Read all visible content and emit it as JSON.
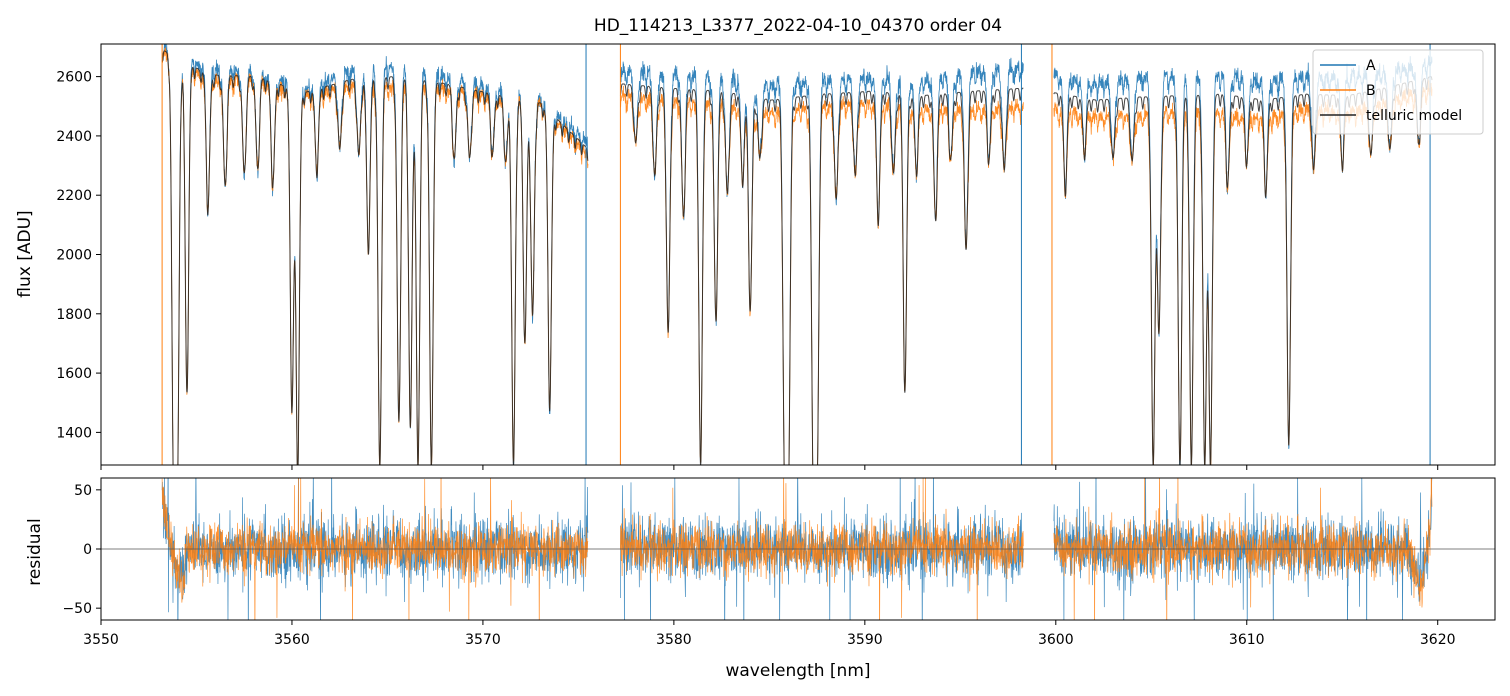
{
  "chart_data": [
    {
      "type": "line",
      "title": "HD_114213_L3377_2022-04-10_04370  order 04",
      "xlabel": "",
      "ylabel": "flux [ADU]",
      "xlim": [
        3550,
        3623
      ],
      "ylim": [
        1290,
        2710
      ],
      "xticks": [
        3550,
        3560,
        3570,
        3580,
        3590,
        3600,
        3610,
        3620
      ],
      "yticks": [
        1400,
        1600,
        1800,
        2000,
        2200,
        2400,
        2600
      ],
      "tick_labels_x_shown": false,
      "grid": false,
      "legend": "top-right",
      "series": [
        {
          "name": "A",
          "color": "#1f77b4"
        },
        {
          "name": "B",
          "color": "#ff7f0e"
        },
        {
          "name": "telluric model",
          "color": "#222222"
        }
      ],
      "segments": [
        {
          "x_range": [
            3553.2,
            3575.5
          ],
          "continuum_A": [
            2700,
            2630,
            2620,
            2560,
            2620,
            2640,
            2600,
            2560,
            2520,
            2380
          ],
          "continuum_B": [
            2690,
            2590,
            2590,
            2540,
            2570,
            2570,
            2560,
            2530,
            2510,
            2340
          ]
        },
        {
          "x_range": [
            3577.2,
            3598.3
          ],
          "continuum_A": [
            2620,
            2610,
            2600,
            2570,
            2590,
            2600,
            2590,
            2620,
            2630
          ],
          "continuum_B": [
            2540,
            2520,
            2510,
            2480,
            2500,
            2510,
            2490,
            2490,
            2500
          ]
        },
        {
          "x_range": [
            3599.9,
            3619.7
          ],
          "continuum_A": [
            2610,
            2580,
            2600,
            2600,
            2610,
            2590,
            2600,
            2600,
            2620,
            2650
          ],
          "continuum_B": [
            2490,
            2470,
            2470,
            2480,
            2480,
            2460,
            2490,
            2480,
            2520,
            2560
          ]
        }
      ],
      "absorption_lines": [
        {
          "x": 3553.8,
          "depth_to": 1290
        },
        {
          "x": 3554.0,
          "depth_to": 1290
        },
        {
          "x": 3554.5,
          "depth_to": 1550
        },
        {
          "x": 3555.6,
          "depth_to": 2170
        },
        {
          "x": 3556.5,
          "depth_to": 2240
        },
        {
          "x": 3557.5,
          "depth_to": 2280
        },
        {
          "x": 3558.2,
          "depth_to": 2300
        },
        {
          "x": 3559.0,
          "depth_to": 2250
        },
        {
          "x": 3560.0,
          "depth_to": 1500
        },
        {
          "x": 3560.3,
          "depth_to": 1290
        },
        {
          "x": 3561.3,
          "depth_to": 2300
        },
        {
          "x": 3562.5,
          "depth_to": 2360
        },
        {
          "x": 3563.5,
          "depth_to": 2340
        },
        {
          "x": 3564.0,
          "depth_to": 2040
        },
        {
          "x": 3564.6,
          "depth_to": 1290
        },
        {
          "x": 3565.6,
          "depth_to": 1440
        },
        {
          "x": 3566.2,
          "depth_to": 1420
        },
        {
          "x": 3566.6,
          "depth_to": 1290
        },
        {
          "x": 3567.3,
          "depth_to": 1290
        },
        {
          "x": 3568.5,
          "depth_to": 2330
        },
        {
          "x": 3569.3,
          "depth_to": 2330
        },
        {
          "x": 3570.5,
          "depth_to": 2350
        },
        {
          "x": 3571.2,
          "depth_to": 2320
        },
        {
          "x": 3571.6,
          "depth_to": 1290
        },
        {
          "x": 3572.2,
          "depth_to": 1710
        },
        {
          "x": 3572.6,
          "depth_to": 1800
        },
        {
          "x": 3573.5,
          "depth_to": 1510
        },
        {
          "x": 3578.0,
          "depth_to": 2380
        },
        {
          "x": 3579.0,
          "depth_to": 2270
        },
        {
          "x": 3579.7,
          "depth_to": 1740
        },
        {
          "x": 3580.5,
          "depth_to": 2140
        },
        {
          "x": 3581.4,
          "depth_to": 1290
        },
        {
          "x": 3582.2,
          "depth_to": 1790
        },
        {
          "x": 3582.8,
          "depth_to": 2210
        },
        {
          "x": 3583.6,
          "depth_to": 2270
        },
        {
          "x": 3584.0,
          "depth_to": 1830
        },
        {
          "x": 3584.5,
          "depth_to": 2330
        },
        {
          "x": 3585.8,
          "depth_to": 1290
        },
        {
          "x": 3586.0,
          "depth_to": 1290
        },
        {
          "x": 3587.3,
          "depth_to": 1290
        },
        {
          "x": 3587.5,
          "depth_to": 1290
        },
        {
          "x": 3588.5,
          "depth_to": 2190
        },
        {
          "x": 3589.5,
          "depth_to": 2270
        },
        {
          "x": 3590.7,
          "depth_to": 2140
        },
        {
          "x": 3591.5,
          "depth_to": 2280
        },
        {
          "x": 3592.1,
          "depth_to": 1560
        },
        {
          "x": 3592.7,
          "depth_to": 2300
        },
        {
          "x": 3593.7,
          "depth_to": 2140
        },
        {
          "x": 3594.5,
          "depth_to": 2330
        },
        {
          "x": 3595.3,
          "depth_to": 2020
        },
        {
          "x": 3596.5,
          "depth_to": 2330
        },
        {
          "x": 3597.3,
          "depth_to": 2290
        },
        {
          "x": 3600.5,
          "depth_to": 2240
        },
        {
          "x": 3601.5,
          "depth_to": 2360
        },
        {
          "x": 3603.0,
          "depth_to": 2330
        },
        {
          "x": 3604.0,
          "depth_to": 2320
        },
        {
          "x": 3605.1,
          "depth_to": 1290
        },
        {
          "x": 3605.4,
          "depth_to": 1740
        },
        {
          "x": 3606.5,
          "depth_to": 1290
        },
        {
          "x": 3607.1,
          "depth_to": 1290
        },
        {
          "x": 3607.8,
          "depth_to": 1290
        },
        {
          "x": 3608.1,
          "depth_to": 1290
        },
        {
          "x": 3609.0,
          "depth_to": 2250
        },
        {
          "x": 3610.0,
          "depth_to": 2330
        },
        {
          "x": 3611.0,
          "depth_to": 2230
        },
        {
          "x": 3612.2,
          "depth_to": 1360
        },
        {
          "x": 3613.5,
          "depth_to": 2290
        },
        {
          "x": 3615.0,
          "depth_to": 2320
        },
        {
          "x": 3616.5,
          "depth_to": 2340
        },
        {
          "x": 3617.5,
          "depth_to": 2360
        },
        {
          "x": 3619.0,
          "depth_to": 2380
        }
      ],
      "vertical_spikes": [
        3553.2,
        3575.4,
        3577.2,
        3598.2,
        3599.8,
        3619.6
      ]
    },
    {
      "type": "line",
      "title": "",
      "xlabel": "wavelength [nm]",
      "ylabel": "residual",
      "xlim": [
        3550,
        3623
      ],
      "ylim": [
        -60,
        60
      ],
      "xticks": [
        3550,
        3560,
        3570,
        3580,
        3590,
        3600,
        3610,
        3620
      ],
      "yticks": [
        -50,
        0,
        50
      ],
      "grid": false,
      "zero_line": 0,
      "series": [
        {
          "name": "A",
          "color": "#1f77b4",
          "noise_amplitude": 22
        },
        {
          "name": "B",
          "color": "#ff7f0e",
          "noise_amplitude": 18
        }
      ],
      "segments": [
        {
          "x_range": [
            3553.2,
            3575.5
          ]
        },
        {
          "x_range": [
            3577.2,
            3598.3
          ]
        },
        {
          "x_range": [
            3599.9,
            3619.7
          ]
        }
      ]
    }
  ]
}
